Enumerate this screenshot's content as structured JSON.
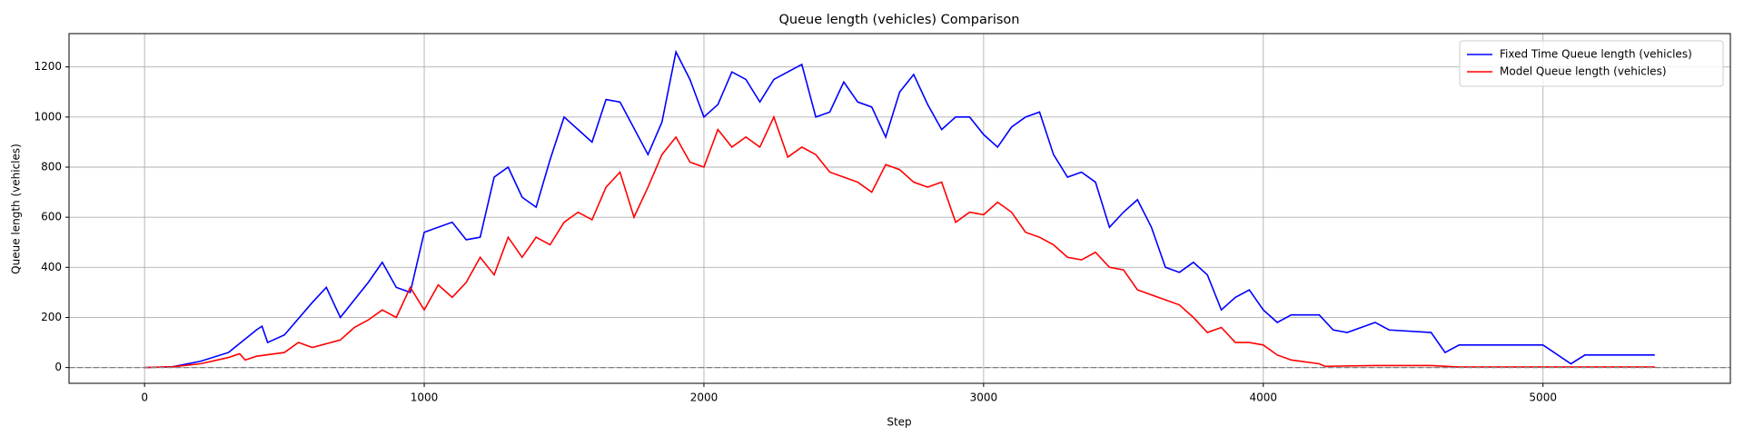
{
  "chart_data": {
    "type": "line",
    "title": "Queue length (vehicles) Comparison",
    "x_label": "Step",
    "y_label": "Queue length (vehicles)",
    "xlim": [
      -270,
      5670
    ],
    "ylim": [
      -63,
      1333
    ],
    "xticks": [
      0,
      1000,
      2000,
      3000,
      4000,
      5000
    ],
    "yticks": [
      0,
      200,
      400,
      600,
      800,
      1000,
      1200
    ],
    "grid": true,
    "legend": "upper right",
    "axhline": {
      "value": 0,
      "color": "#808080",
      "style": "dashed"
    },
    "series": [
      {
        "name": "Fixed Time Queue length (vehicles)",
        "color": "#0000ff",
        "x": [
          0,
          100,
          200,
          300,
          400,
          420,
          440,
          500,
          600,
          650,
          700,
          800,
          850,
          900,
          950,
          1000,
          1100,
          1150,
          1200,
          1250,
          1300,
          1350,
          1400,
          1450,
          1500,
          1600,
          1650,
          1700,
          1800,
          1850,
          1900,
          1950,
          2000,
          2050,
          2100,
          2150,
          2200,
          2250,
          2300,
          2350,
          2400,
          2450,
          2500,
          2550,
          2600,
          2650,
          2700,
          2750,
          2800,
          2850,
          2900,
          2950,
          3000,
          3050,
          3100,
          3150,
          3200,
          3250,
          3300,
          3350,
          3400,
          3450,
          3500,
          3550,
          3600,
          3650,
          3700,
          3750,
          3800,
          3850,
          3900,
          3950,
          4000,
          4050,
          4100,
          4200,
          4250,
          4300,
          4400,
          4450,
          4600,
          4650,
          4700,
          5000,
          5100,
          5150,
          5400
        ],
        "values": [
          0,
          3,
          25,
          60,
          150,
          165,
          100,
          130,
          260,
          320,
          200,
          340,
          420,
          320,
          300,
          540,
          580,
          510,
          520,
          760,
          800,
          680,
          640,
          830,
          1000,
          900,
          1070,
          1060,
          850,
          980,
          1260,
          1150,
          1000,
          1050,
          1180,
          1150,
          1060,
          1150,
          1180,
          1210,
          1000,
          1020,
          1140,
          1060,
          1040,
          920,
          1100,
          1170,
          1050,
          950,
          1000,
          1000,
          930,
          880,
          960,
          1000,
          1020,
          850,
          760,
          780,
          740,
          560,
          620,
          670,
          560,
          400,
          380,
          420,
          370,
          230,
          280,
          310,
          230,
          180,
          210,
          210,
          150,
          140,
          180,
          150,
          140,
          60,
          90,
          90,
          15,
          50,
          50
        ]
      },
      {
        "name": "Model Queue length (vehicles)",
        "color": "#ff0000",
        "x": [
          0,
          100,
          200,
          300,
          340,
          360,
          400,
          500,
          550,
          600,
          700,
          750,
          800,
          850,
          900,
          950,
          1000,
          1050,
          1100,
          1150,
          1200,
          1250,
          1300,
          1350,
          1400,
          1450,
          1500,
          1550,
          1600,
          1650,
          1700,
          1750,
          1800,
          1850,
          1900,
          1950,
          2000,
          2050,
          2100,
          2150,
          2200,
          2250,
          2300,
          2350,
          2400,
          2450,
          2500,
          2550,
          2600,
          2650,
          2700,
          2750,
          2800,
          2850,
          2900,
          2950,
          3000,
          3050,
          3100,
          3150,
          3200,
          3250,
          3300,
          3350,
          3400,
          3450,
          3500,
          3550,
          3600,
          3650,
          3700,
          3750,
          3800,
          3850,
          3900,
          3950,
          4000,
          4050,
          4100,
          4200,
          4220,
          4400,
          4600,
          4700,
          5400
        ],
        "values": [
          0,
          3,
          15,
          40,
          55,
          30,
          45,
          60,
          100,
          80,
          110,
          160,
          190,
          230,
          200,
          320,
          230,
          330,
          280,
          340,
          440,
          370,
          520,
          440,
          520,
          490,
          580,
          620,
          590,
          720,
          780,
          600,
          720,
          850,
          920,
          820,
          800,
          950,
          880,
          920,
          880,
          1000,
          840,
          880,
          850,
          780,
          760,
          740,
          700,
          810,
          790,
          740,
          720,
          740,
          580,
          620,
          610,
          660,
          620,
          540,
          520,
          490,
          440,
          430,
          460,
          400,
          390,
          310,
          290,
          270,
          250,
          200,
          140,
          160,
          100,
          100,
          90,
          50,
          30,
          15,
          5,
          8,
          8,
          2,
          2
        ]
      }
    ]
  }
}
